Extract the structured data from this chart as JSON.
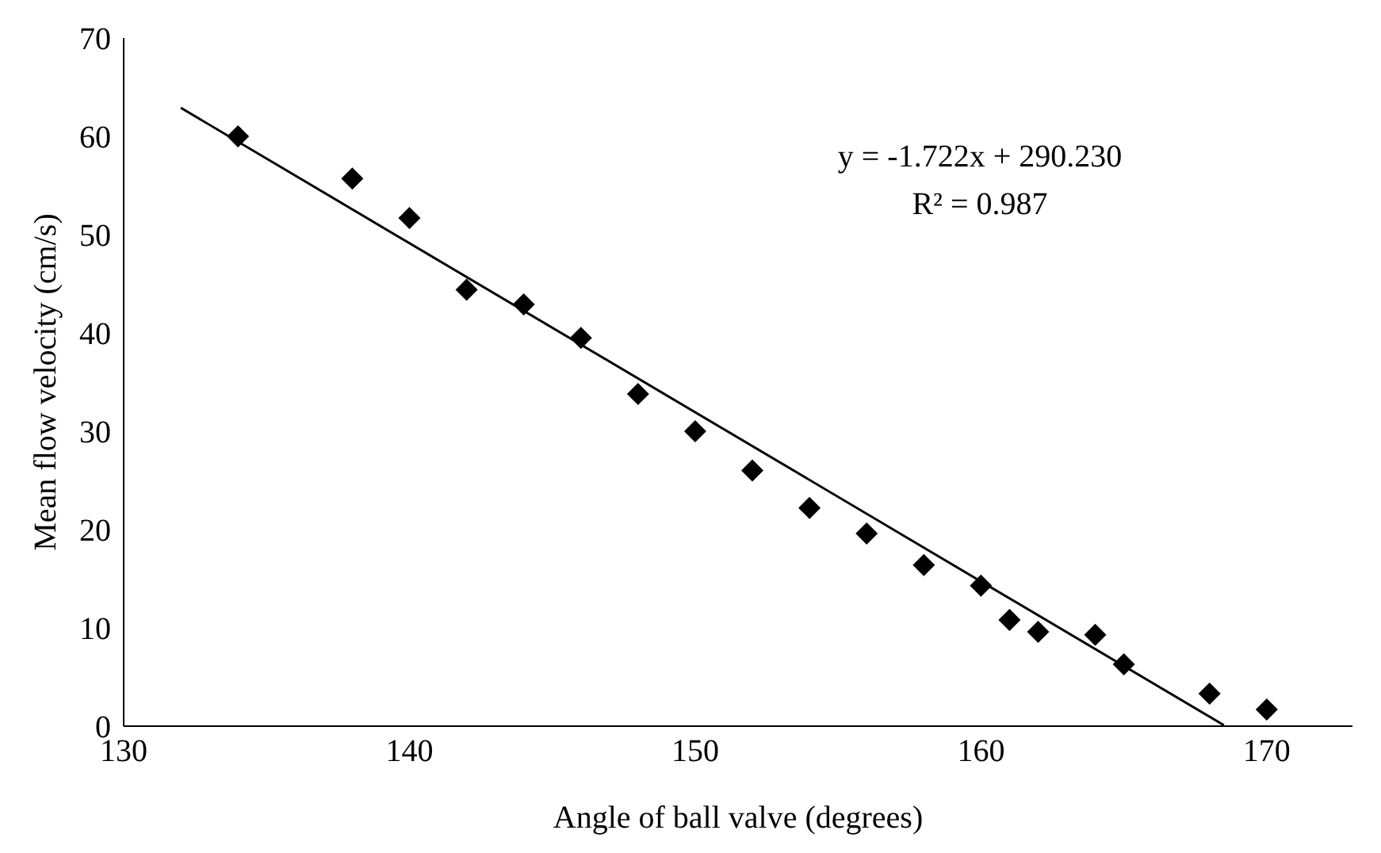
{
  "chart_data": {
    "type": "scatter",
    "xlabel": "Angle of ball valve (degrees)",
    "ylabel": "Mean flow velocity (cm/s)",
    "xlim": [
      130,
      173
    ],
    "xticks": [
      130,
      140,
      150,
      160,
      170
    ],
    "ylim": [
      0,
      70
    ],
    "yticks": [
      0,
      10,
      20,
      30,
      40,
      50,
      60,
      70
    ],
    "grid": false,
    "legend": false,
    "marker": "diamond",
    "annotations": [
      "y = -1.722x + 290.230",
      "R² = 0.987"
    ],
    "series": [
      {
        "color": "#000000",
        "x": [
          134,
          138,
          140,
          142,
          144,
          146,
          148,
          150,
          152,
          154,
          156,
          158,
          160,
          161,
          162,
          164,
          165,
          168,
          170
        ],
        "values": [
          60.0,
          55.7,
          51.7,
          44.4,
          42.9,
          39.5,
          33.8,
          30.0,
          26.0,
          22.2,
          19.6,
          16.4,
          14.3,
          10.8,
          9.6,
          9.3,
          6.3,
          3.3,
          1.7
        ]
      },
      {
        "type": "line",
        "color": "#000000",
        "marker": "none",
        "line_style": "solid",
        "x": [
          132,
          168.5
        ],
        "values": [
          62.9,
          0.1
        ]
      }
    ]
  }
}
